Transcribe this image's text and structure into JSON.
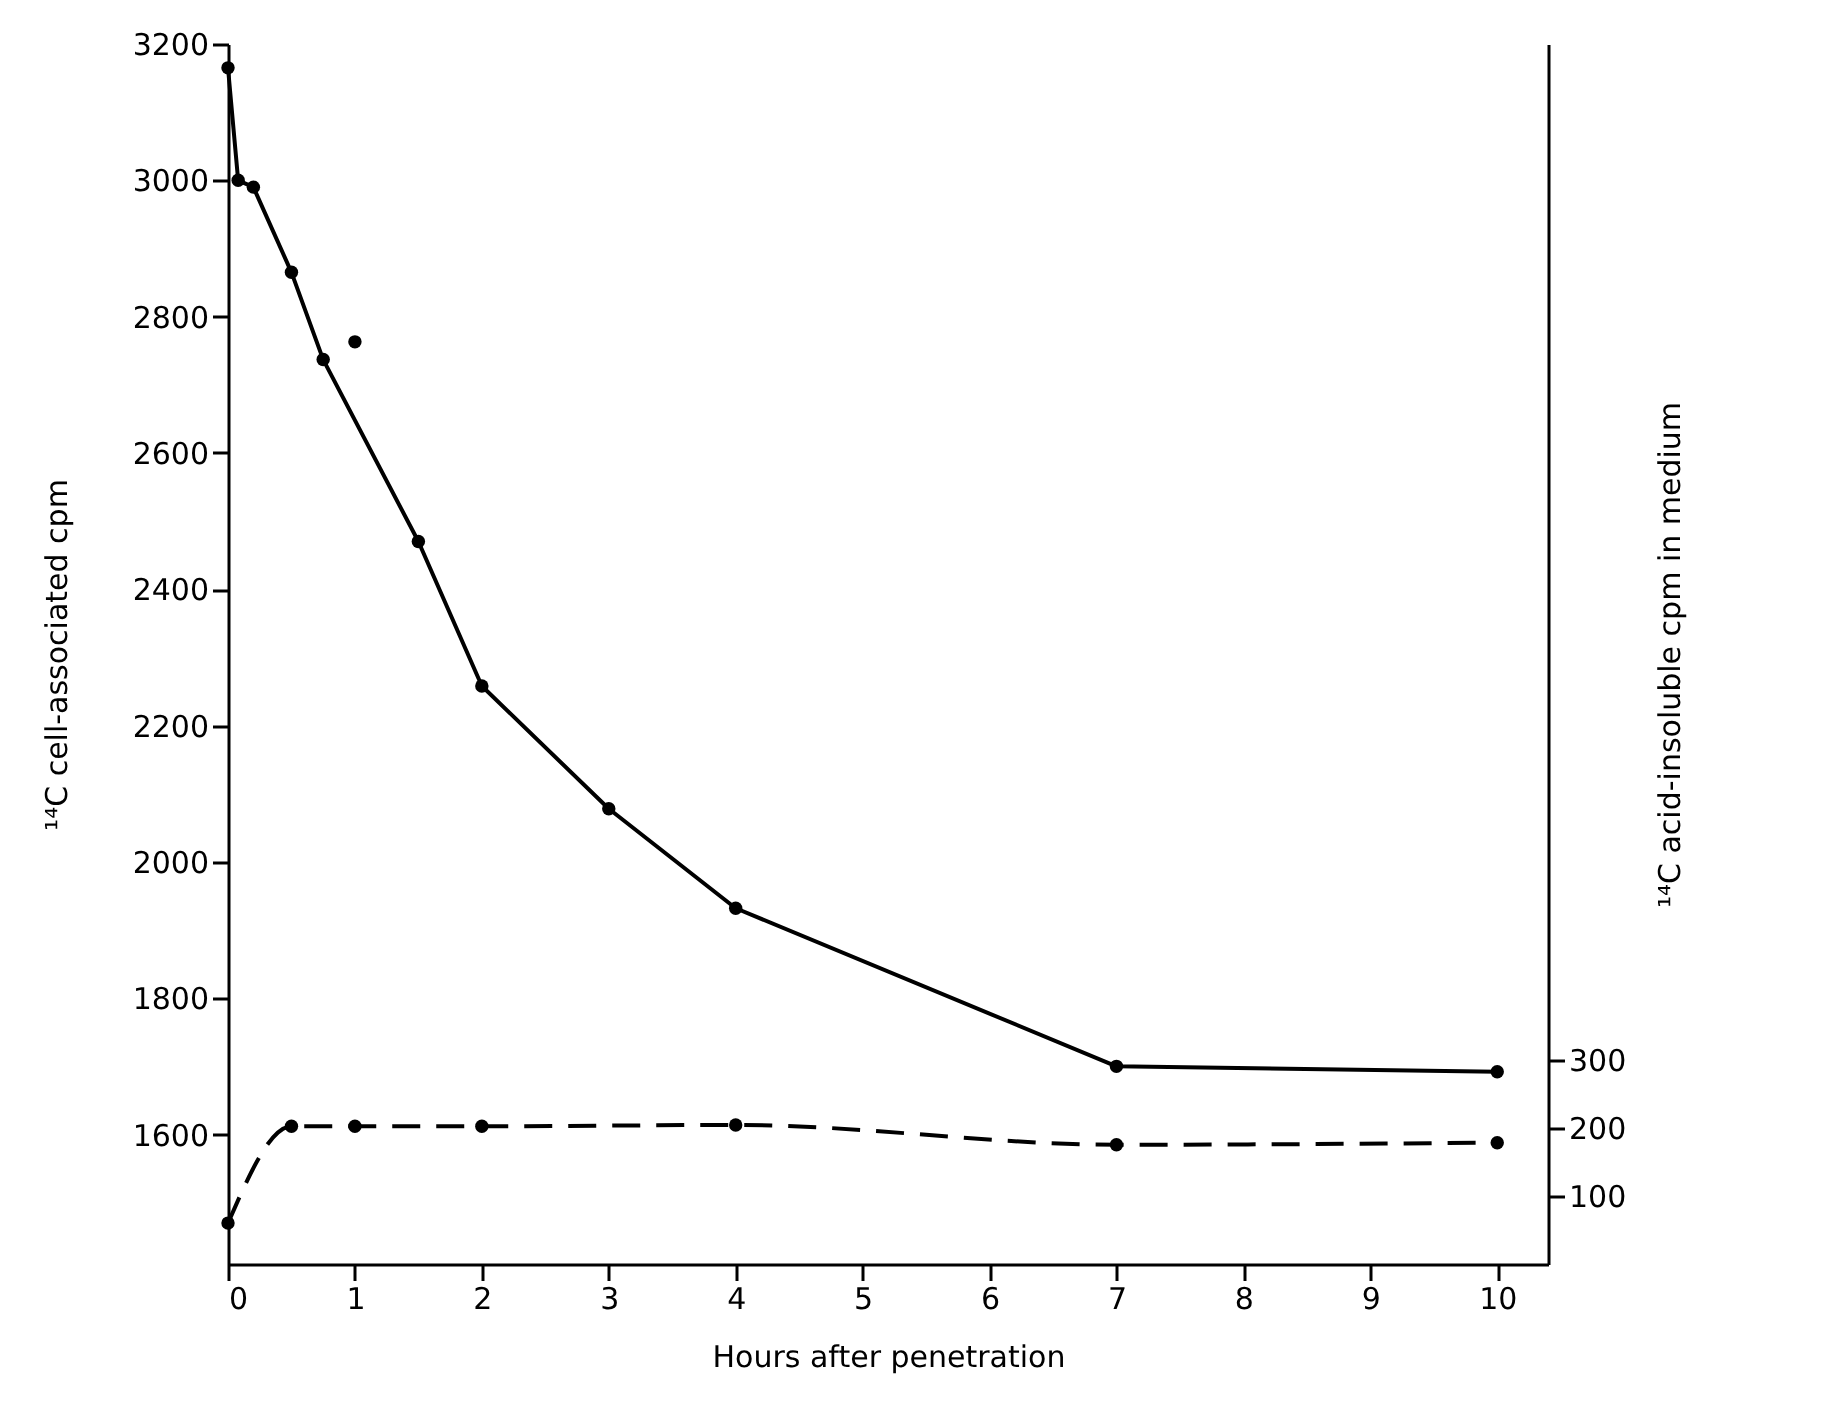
{
  "chart_data": {
    "type": "line",
    "xlabel": "Hours after penetration",
    "ylabel": "¹⁴C cell-associated cpm",
    "y2label": "¹⁴C acid-insoluble cpm in medium",
    "xlim": [
      0,
      10.4
    ],
    "xticks": [
      0,
      1,
      2,
      3,
      4,
      5,
      6,
      7,
      8,
      9,
      10
    ],
    "ylim": [
      1410,
      3200
    ],
    "yticks": [
      1600,
      1800,
      2000,
      2200,
      2400,
      2600,
      2800,
      3000,
      3200
    ],
    "y2lim": [
      0,
      1790
    ],
    "y2ticks": [
      100,
      200,
      300
    ],
    "grid": false,
    "marker": "circle",
    "series": [
      {
        "color": "#000000",
        "line_style": "solid",
        "x": [
          0,
          0.08,
          0.2,
          0.5,
          0.75,
          1.5,
          2,
          3,
          4,
          7,
          10
        ],
        "values": [
          3165,
          3000,
          2990,
          2865,
          2737,
          2470,
          2258,
          2078,
          1932,
          1700,
          1692
        ]
      },
      {
        "type": "scatter",
        "color": "#000000",
        "x": [
          1
        ],
        "values": [
          2763
        ]
      },
      {
        "axis": "y2",
        "color": "#000000",
        "line_style": "dashed",
        "x": [
          0,
          0.5,
          1,
          2,
          4,
          7,
          10
        ],
        "values": [
          60,
          202,
          202,
          202,
          204,
          175,
          178
        ]
      }
    ]
  }
}
